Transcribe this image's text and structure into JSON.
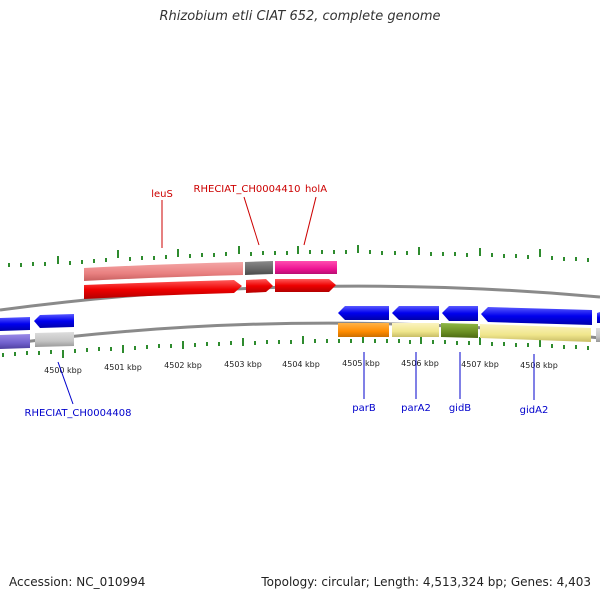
{
  "title": "Rhizobium etli CIAT 652, complete genome",
  "footer": {
    "accession": "Accession: NC_010994",
    "summary": "Topology: circular; Length: 4,513,324 bp; Genes: 4,403"
  },
  "colors": {
    "backbone": "#808080",
    "tick": "#2e8b2e",
    "forward_label": "#cc0000",
    "reverse_label": "#0000cc"
  },
  "kbp_labels": [
    {
      "value": 4500,
      "text": "4500 kbp"
    },
    {
      "value": 4501,
      "text": "4501 kbp"
    },
    {
      "value": 4502,
      "text": "4502 kbp"
    },
    {
      "value": 4503,
      "text": "4503 kbp"
    },
    {
      "value": 4504,
      "text": "4504 kbp"
    },
    {
      "value": 4505,
      "text": "4505 kbp"
    },
    {
      "value": 4506,
      "text": "4506 kbp"
    },
    {
      "value": 4507,
      "text": "4507 kbp"
    },
    {
      "value": 4508,
      "text": "4508 kbp"
    }
  ],
  "gene_labels": [
    {
      "name": "leuS",
      "strand": "forward"
    },
    {
      "name": "RHECIAT_CH0004410",
      "strand": "forward"
    },
    {
      "name": "holA",
      "strand": "forward"
    },
    {
      "name": "RHECIAT_CH0004408",
      "strand": "reverse"
    },
    {
      "name": "parB",
      "strand": "reverse"
    },
    {
      "name": "parA2",
      "strand": "reverse"
    },
    {
      "name": "gidB",
      "strand": "reverse"
    },
    {
      "name": "gidA2",
      "strand": "reverse"
    }
  ]
}
